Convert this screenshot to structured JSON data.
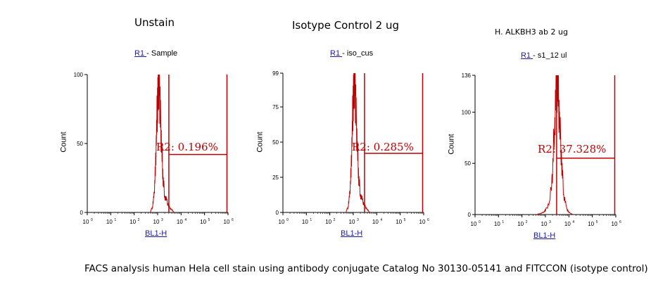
{
  "caption": "FACS analysis human Hela cell stain using antibody conjugate Catalog No 30130-05141 and FITCCON (isotype control)",
  "colors": {
    "histogram": "#c00000",
    "gate": "#c00000",
    "axis": "#000000",
    "link": "#1a1aa6"
  },
  "panels": [
    {
      "title": "Unstain",
      "gate_prefix": "R1 ",
      "gate_sep": " - ",
      "sample": "Sample",
      "stat": "R2: 0.196%",
      "ylabel": "Count",
      "xlabel": "BL1-H"
    },
    {
      "title": "Isotype Control 2 ug",
      "gate_prefix": "R1 ",
      "gate_sep": " - ",
      "sample": "iso_cus",
      "stat": "R2: 0.285%",
      "ylabel": "Count",
      "xlabel": "BL1-H"
    },
    {
      "title": "H. ALKBH3 ab 2 ug",
      "gate_prefix": "R1 ",
      "gate_sep": " - ",
      "sample": "s1_12 ul",
      "stat": "R2: 37.328%",
      "ylabel": "Count",
      "xlabel": "BL1-H"
    }
  ],
  "chart_data": [
    {
      "type": "area",
      "title": "Unstain",
      "xlabel": "BL1-H",
      "ylabel": "Count",
      "xscale": "log",
      "xlim": [
        1,
        1000000
      ],
      "ylim": [
        0,
        100
      ],
      "yticks": [
        0,
        50,
        100
      ],
      "xticks_base": "10",
      "xticks_exp": [
        "0",
        "1",
        "2",
        "3",
        "4",
        "5",
        "6"
      ],
      "gate": {
        "name": "R2",
        "stat": "0.196%",
        "x_range": [
          3000,
          900000
        ],
        "level": 42
      },
      "series": [
        {
          "x": [
            500,
            600,
            700,
            800,
            900,
            1000,
            1100,
            1200,
            1300,
            1500,
            1700,
            2000,
            2500,
            3000,
            4000,
            5000
          ],
          "y": [
            1,
            4,
            12,
            30,
            60,
            85,
            100,
            92,
            70,
            45,
            25,
            12,
            8,
            4,
            2,
            0
          ]
        }
      ]
    },
    {
      "type": "area",
      "title": "Isotype Control 2 ug",
      "xlabel": "BL1-H",
      "ylabel": "Count",
      "xscale": "log",
      "xlim": [
        1,
        1000000
      ],
      "ylim": [
        0,
        99
      ],
      "yticks": [
        0,
        25,
        50,
        75,
        99
      ],
      "xticks_base": "10",
      "xticks_exp": [
        "0",
        "1",
        "2",
        "3",
        "4",
        "5",
        "6"
      ],
      "gate": {
        "name": "R2",
        "stat": "0.285%",
        "x_range": [
          3000,
          900000
        ],
        "level": 42
      },
      "series": [
        {
          "x": [
            500,
            600,
            700,
            800,
            900,
            1000,
            1100,
            1200,
            1300,
            1500,
            1700,
            2000,
            2500,
            3000,
            4000,
            5000
          ],
          "y": [
            1,
            4,
            12,
            28,
            58,
            85,
            99,
            90,
            70,
            45,
            25,
            13,
            8,
            5,
            2,
            0
          ]
        }
      ]
    },
    {
      "type": "area",
      "title": "H. ALKBH3 ab 2 ug",
      "xlabel": "BL1-H",
      "ylabel": "Count",
      "xscale": "log",
      "xlim": [
        1,
        1000000
      ],
      "ylim": [
        0,
        136
      ],
      "yticks": [
        0,
        50,
        100,
        136
      ],
      "xticks_base": "10",
      "xticks_exp": [
        "0",
        "1",
        "2",
        "3",
        "4",
        "5",
        "6"
      ],
      "gate": {
        "name": "R2",
        "stat": "37.328%",
        "x_range": [
          3000,
          900000
        ],
        "level": 55
      },
      "series": [
        {
          "x": [
            400,
            600,
            800,
            1000,
            1500,
            2000,
            2500,
            3000,
            3500,
            4000,
            5000,
            6000,
            8000,
            10000,
            15000
          ],
          "y": [
            0,
            1,
            2,
            4,
            12,
            40,
            95,
            136,
            120,
            90,
            50,
            20,
            6,
            2,
            0
          ]
        }
      ]
    }
  ]
}
